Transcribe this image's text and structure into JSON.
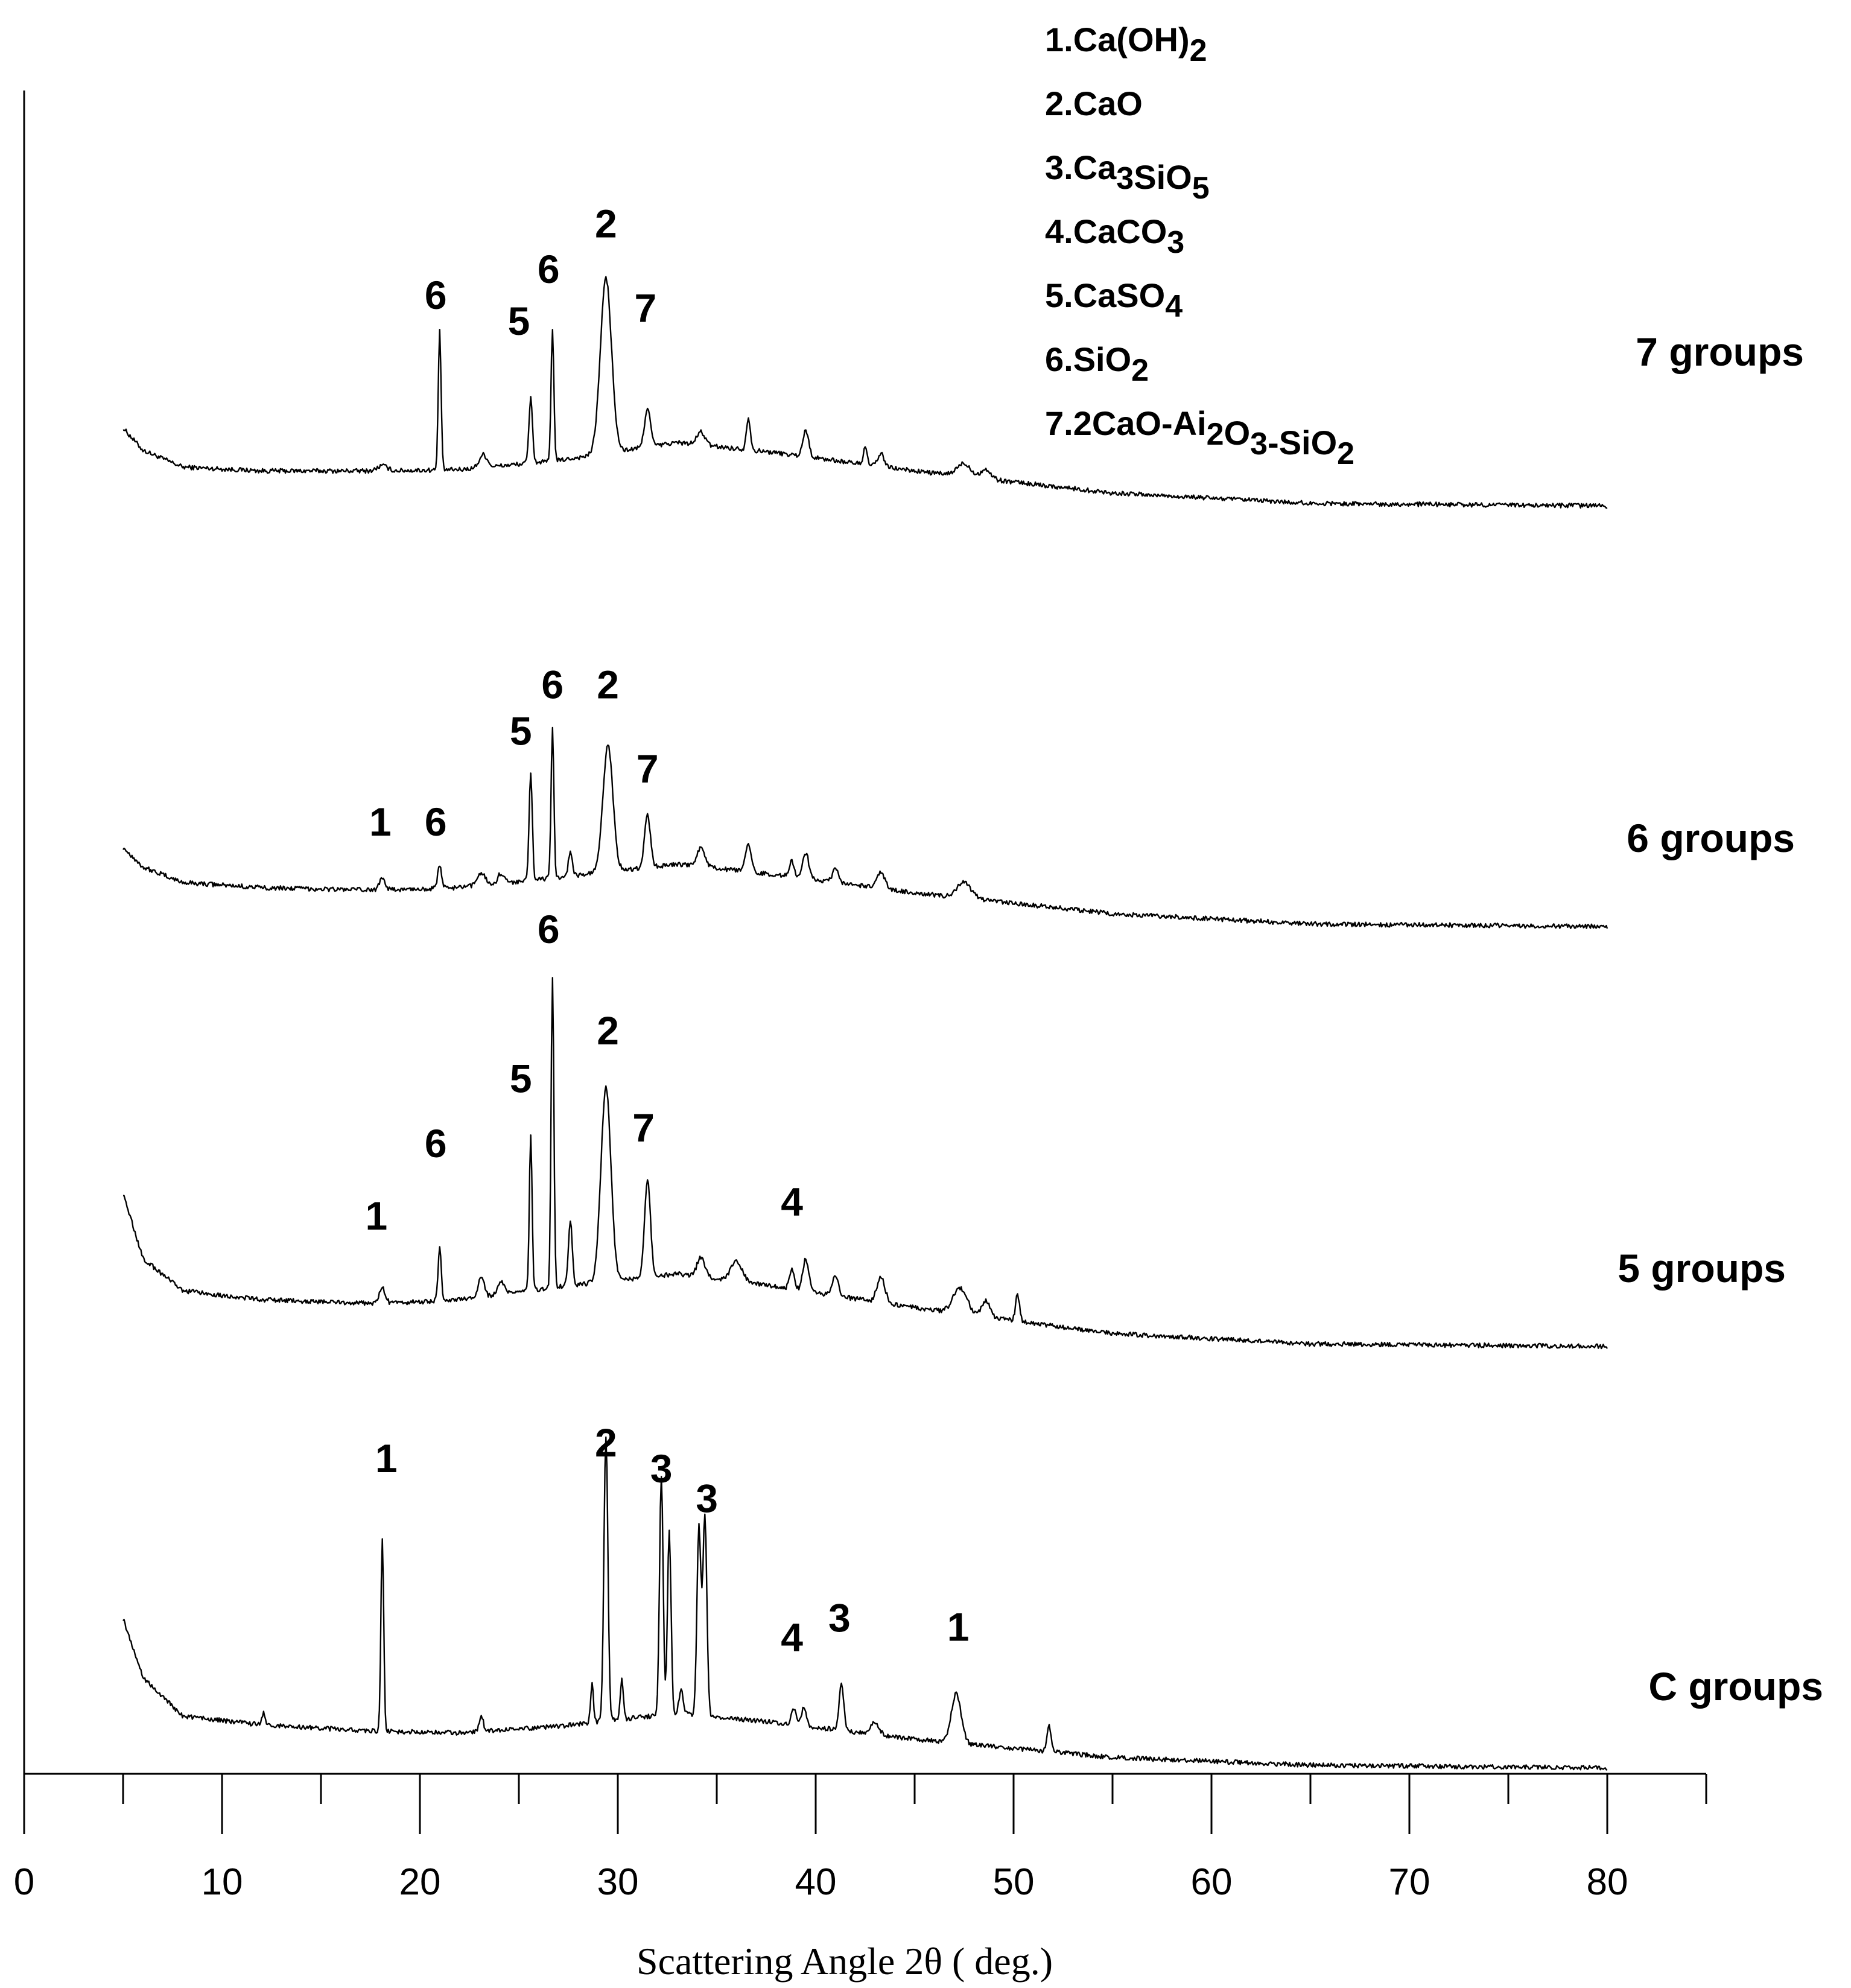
{
  "chart_data": {
    "type": "line",
    "title": "",
    "xlabel": "Scattering Angle 2θ ( deg.)",
    "ylabel": "",
    "xlim": [
      0,
      85
    ],
    "x_ticks_major": [
      0,
      10,
      20,
      30,
      40,
      50,
      60,
      70,
      80
    ],
    "x_ticks_minor": [
      5,
      15,
      25,
      35,
      45,
      55,
      65,
      75,
      85
    ],
    "grid": false,
    "legend": {
      "position": "top-right",
      "items": [
        {
          "num": "1",
          "formula": [
            [
              "Ca(OH)",
              false
            ],
            [
              "2",
              true
            ]
          ]
        },
        {
          "num": "2",
          "formula": [
            [
              "CaO",
              false
            ]
          ]
        },
        {
          "num": "3",
          "formula": [
            [
              "Ca",
              false
            ],
            [
              "3",
              true
            ],
            [
              "SiO",
              false
            ],
            [
              "5",
              true
            ]
          ]
        },
        {
          "num": "4",
          "formula": [
            [
              "CaCO",
              false
            ],
            [
              "3",
              true
            ]
          ]
        },
        {
          "num": "5",
          "formula": [
            [
              "CaSO",
              false
            ],
            [
              "4",
              true
            ]
          ]
        },
        {
          "num": "6",
          "formula": [
            [
              "SiO",
              false
            ],
            [
              "2",
              true
            ]
          ]
        },
        {
          "num": "7",
          "formula": [
            [
              "2CaO-Ai",
              false
            ],
            [
              "2",
              true
            ],
            [
              "O",
              false
            ],
            [
              "3",
              true
            ],
            [
              "-SiO",
              false
            ],
            [
              "2",
              true
            ]
          ]
        }
      ]
    },
    "series": [
      {
        "name": "7 groups",
        "baseline": {
          "x": [
            5,
            6,
            8,
            12,
            18,
            22,
            27,
            33,
            38,
            45,
            55,
            65,
            80
          ],
          "y": [
            0.63,
            0.46,
            0.33,
            0.3,
            0.3,
            0.31,
            0.38,
            0.52,
            0.44,
            0.3,
            0.13,
            0.05,
            0.03
          ]
        },
        "peaks": [
          {
            "x": 18.1,
            "h": 0.04,
            "w": 0.25
          },
          {
            "x": 21.0,
            "h": 1.08,
            "w": 0.07
          },
          {
            "x": 23.2,
            "h": 0.1,
            "w": 0.2
          },
          {
            "x": 25.6,
            "h": 0.5,
            "w": 0.09
          },
          {
            "x": 26.7,
            "h": 1.02,
            "w": 0.07
          },
          {
            "x": 29.4,
            "h": 1.35,
            "w": 0.28
          },
          {
            "x": 31.5,
            "h": 0.3,
            "w": 0.15
          },
          {
            "x": 34.2,
            "h": 0.1,
            "w": 0.2
          },
          {
            "x": 36.6,
            "h": 0.25,
            "w": 0.1
          },
          {
            "x": 39.5,
            "h": 0.2,
            "w": 0.15
          },
          {
            "x": 42.5,
            "h": 0.12,
            "w": 0.1
          },
          {
            "x": 43.3,
            "h": 0.1,
            "w": 0.15
          },
          {
            "x": 47.5,
            "h": 0.1,
            "w": 0.35
          },
          {
            "x": 48.6,
            "h": 0.07,
            "w": 0.25
          }
        ],
        "peak_labels": [
          {
            "text": "6",
            "x": 20.8,
            "y": 1.55
          },
          {
            "text": "5",
            "x": 25.0,
            "y": 1.35
          },
          {
            "text": "6",
            "x": 26.5,
            "y": 1.75
          },
          {
            "text": "2",
            "x": 29.4,
            "y": 2.1
          },
          {
            "text": "7",
            "x": 31.4,
            "y": 1.45
          }
        ]
      },
      {
        "name": "6 groups",
        "baseline": {
          "x": [
            5,
            6,
            8,
            12,
            18,
            22,
            27,
            33,
            38,
            45,
            55,
            65,
            80
          ],
          "y": [
            0.63,
            0.48,
            0.36,
            0.32,
            0.3,
            0.32,
            0.4,
            0.5,
            0.42,
            0.28,
            0.12,
            0.04,
            0.02
          ]
        },
        "peaks": [
          {
            "x": 18.1,
            "h": 0.1,
            "w": 0.15
          },
          {
            "x": 21.0,
            "h": 0.17,
            "w": 0.1
          },
          {
            "x": 23.1,
            "h": 0.1,
            "w": 0.2
          },
          {
            "x": 24.1,
            "h": 0.08,
            "w": 0.15
          },
          {
            "x": 25.6,
            "h": 0.82,
            "w": 0.08
          },
          {
            "x": 26.7,
            "h": 1.15,
            "w": 0.07
          },
          {
            "x": 27.6,
            "h": 0.18,
            "w": 0.1
          },
          {
            "x": 29.5,
            "h": 0.98,
            "w": 0.25
          },
          {
            "x": 31.5,
            "h": 0.4,
            "w": 0.15
          },
          {
            "x": 34.2,
            "h": 0.15,
            "w": 0.2
          },
          {
            "x": 36.6,
            "h": 0.2,
            "w": 0.15
          },
          {
            "x": 38.8,
            "h": 0.12,
            "w": 0.12
          },
          {
            "x": 39.5,
            "h": 0.2,
            "w": 0.15
          },
          {
            "x": 41.0,
            "h": 0.1,
            "w": 0.15
          },
          {
            "x": 43.3,
            "h": 0.12,
            "w": 0.2
          },
          {
            "x": 47.5,
            "h": 0.12,
            "w": 0.35
          }
        ],
        "peak_labels": [
          {
            "text": "1",
            "x": 18.0,
            "y": 0.72
          },
          {
            "text": "6",
            "x": 20.8,
            "y": 0.72
          },
          {
            "text": "5",
            "x": 25.1,
            "y": 1.42
          },
          {
            "text": "6",
            "x": 26.7,
            "y": 1.78
          },
          {
            "text": "2",
            "x": 29.5,
            "y": 1.78
          },
          {
            "text": "7",
            "x": 31.5,
            "y": 1.13
          }
        ]
      },
      {
        "name": "5 groups",
        "baseline": {
          "x": [
            5,
            6,
            8,
            12,
            18,
            22,
            27,
            33,
            38,
            45,
            55,
            65,
            80
          ],
          "y": [
            1.2,
            0.7,
            0.45,
            0.38,
            0.35,
            0.38,
            0.48,
            0.58,
            0.48,
            0.32,
            0.12,
            0.04,
            0.02
          ]
        },
        "peaks": [
          {
            "x": 18.1,
            "h": 0.12,
            "w": 0.15
          },
          {
            "x": 21.0,
            "h": 0.42,
            "w": 0.08
          },
          {
            "x": 23.1,
            "h": 0.15,
            "w": 0.15
          },
          {
            "x": 24.1,
            "h": 0.1,
            "w": 0.15
          },
          {
            "x": 25.6,
            "h": 1.2,
            "w": 0.07
          },
          {
            "x": 26.7,
            "h": 2.4,
            "w": 0.07
          },
          {
            "x": 27.6,
            "h": 0.5,
            "w": 0.1
          },
          {
            "x": 29.4,
            "h": 1.5,
            "w": 0.25
          },
          {
            "x": 31.5,
            "h": 0.75,
            "w": 0.15
          },
          {
            "x": 34.2,
            "h": 0.15,
            "w": 0.2
          },
          {
            "x": 36.0,
            "h": 0.15,
            "w": 0.3
          },
          {
            "x": 38.8,
            "h": 0.15,
            "w": 0.12
          },
          {
            "x": 39.5,
            "h": 0.25,
            "w": 0.15
          },
          {
            "x": 41.0,
            "h": 0.15,
            "w": 0.15
          },
          {
            "x": 43.3,
            "h": 0.2,
            "w": 0.2
          },
          {
            "x": 47.3,
            "h": 0.2,
            "w": 0.35
          },
          {
            "x": 48.6,
            "h": 0.12,
            "w": 0.2
          },
          {
            "x": 50.2,
            "h": 0.2,
            "w": 0.1
          }
        ],
        "peak_labels": [
          {
            "text": "1",
            "x": 17.8,
            "y": 0.92
          },
          {
            "text": "6",
            "x": 20.8,
            "y": 1.48
          },
          {
            "text": "5",
            "x": 25.1,
            "y": 1.98
          },
          {
            "text": "6",
            "x": 26.5,
            "y": 3.13
          },
          {
            "text": "2",
            "x": 29.5,
            "y": 2.35
          },
          {
            "text": "7",
            "x": 31.3,
            "y": 1.6
          },
          {
            "text": "4",
            "x": 38.8,
            "y": 1.03
          }
        ]
      },
      {
        "name": "C groups",
        "baseline": {
          "x": [
            5,
            6,
            8,
            12,
            18,
            22,
            27,
            33,
            38,
            45,
            55,
            65,
            80
          ],
          "y": [
            1.15,
            0.7,
            0.4,
            0.33,
            0.28,
            0.27,
            0.32,
            0.42,
            0.35,
            0.22,
            0.08,
            0.02,
            0.0
          ]
        },
        "peaks": [
          {
            "x": 12.1,
            "h": 0.1,
            "w": 0.08
          },
          {
            "x": 18.1,
            "h": 1.5,
            "w": 0.07
          },
          {
            "x": 23.1,
            "h": 0.12,
            "w": 0.1
          },
          {
            "x": 28.7,
            "h": 0.3,
            "w": 0.07
          },
          {
            "x": 29.4,
            "h": 2.2,
            "w": 0.1
          },
          {
            "x": 30.2,
            "h": 0.3,
            "w": 0.08
          },
          {
            "x": 32.2,
            "h": 1.85,
            "w": 0.09
          },
          {
            "x": 32.6,
            "h": 1.4,
            "w": 0.09
          },
          {
            "x": 33.2,
            "h": 0.2,
            "w": 0.1
          },
          {
            "x": 34.1,
            "h": 1.45,
            "w": 0.1
          },
          {
            "x": 34.4,
            "h": 1.55,
            "w": 0.1
          },
          {
            "x": 38.9,
            "h": 0.12,
            "w": 0.12
          },
          {
            "x": 39.4,
            "h": 0.14,
            "w": 0.12
          },
          {
            "x": 41.3,
            "h": 0.35,
            "w": 0.12
          },
          {
            "x": 43.0,
            "h": 0.1,
            "w": 0.2
          },
          {
            "x": 47.1,
            "h": 0.38,
            "w": 0.25
          },
          {
            "x": 51.8,
            "h": 0.2,
            "w": 0.1
          }
        ],
        "peak_labels": [
          {
            "text": "1",
            "x": 18.3,
            "y": 2.28
          },
          {
            "text": "2",
            "x": 29.4,
            "y": 2.4
          },
          {
            "text": "3",
            "x": 32.2,
            "y": 2.2
          },
          {
            "text": "3",
            "x": 34.5,
            "y": 1.97
          },
          {
            "text": "4",
            "x": 38.8,
            "y": 0.9
          },
          {
            "text": "3",
            "x": 41.2,
            "y": 1.05
          },
          {
            "text": "1",
            "x": 47.2,
            "y": 0.98
          }
        ]
      }
    ]
  }
}
